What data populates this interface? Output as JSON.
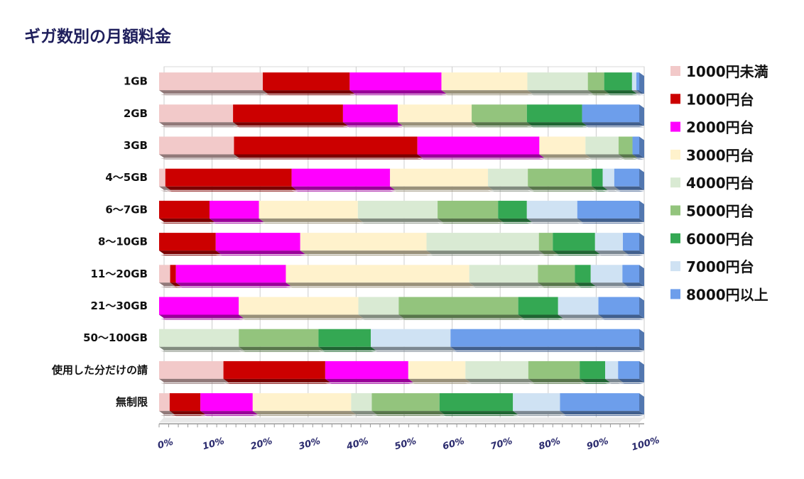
{
  "chart_data": {
    "type": "bar",
    "orientation": "horizontal",
    "stacked": "percent",
    "title": "ギガ数別の月額料金",
    "categories": [
      "1GB",
      "2GB",
      "3GB",
      "4～5GB",
      "6～7GB",
      "8～10GB",
      "11～20GB",
      "21～30GB",
      "50～100GB",
      "使用した分だけの請",
      "無制限"
    ],
    "xlim": [
      0,
      100
    ],
    "xticks": [
      "0%",
      "10%",
      "20%",
      "30%",
      "40%",
      "50%",
      "60%",
      "70%",
      "80%",
      "90%",
      "100%"
    ],
    "legend_position": "right",
    "grid": true,
    "series": [
      {
        "name": "1000円未満",
        "color": "#f2c9c9",
        "values": [
          21.6,
          15.4,
          15.6,
          1.3,
          0,
          0,
          2.3,
          0,
          0,
          13.4,
          2.2
        ]
      },
      {
        "name": "1000円台",
        "color": "#cc0000",
        "values": [
          18.1,
          22.9,
          38.2,
          26.3,
          10.5,
          11.8,
          1.2,
          0,
          0,
          21.2,
          6.4
        ]
      },
      {
        "name": "2000円台",
        "color": "#ff00ff",
        "values": [
          19.1,
          11.4,
          25.4,
          20.5,
          10.3,
          17.6,
          22.9,
          16.6,
          0,
          17.3,
          10.9
        ]
      },
      {
        "name": "3000円台",
        "color": "#fff2cc",
        "values": [
          17.9,
          15.4,
          9.6,
          20.4,
          20.6,
          26.3,
          38.2,
          24.9,
          0,
          11.9,
          20.5
        ]
      },
      {
        "name": "4000円台",
        "color": "#d9ead3",
        "values": [
          12.6,
          0,
          6.9,
          8.3,
          16.6,
          23.4,
          14.3,
          8.4,
          16.6,
          13.1,
          4.3
        ]
      },
      {
        "name": "5000円台",
        "color": "#93c47d",
        "values": [
          3.4,
          11.5,
          2.9,
          13.3,
          12.6,
          2.9,
          7.7,
          24.9,
          16.6,
          10.7,
          14.1
        ]
      },
      {
        "name": "6000円台",
        "color": "#34a853",
        "values": [
          5.8,
          11.5,
          0,
          2.3,
          6.0,
          8.8,
          3.3,
          8.3,
          10.9,
          5.3,
          15.3
        ]
      },
      {
        "name": "7000円台",
        "color": "#cfe2f3",
        "values": [
          0.9,
          0,
          0,
          2.4,
          10.5,
          5.8,
          6.6,
          8.4,
          16.6,
          2.7,
          9.8
        ]
      },
      {
        "name": "8000円以上",
        "color": "#6d9eeb",
        "values": [
          0.6,
          11.9,
          1.4,
          5.2,
          12.9,
          3.4,
          3.5,
          8.5,
          39.3,
          4.4,
          16.5
        ]
      }
    ]
  }
}
